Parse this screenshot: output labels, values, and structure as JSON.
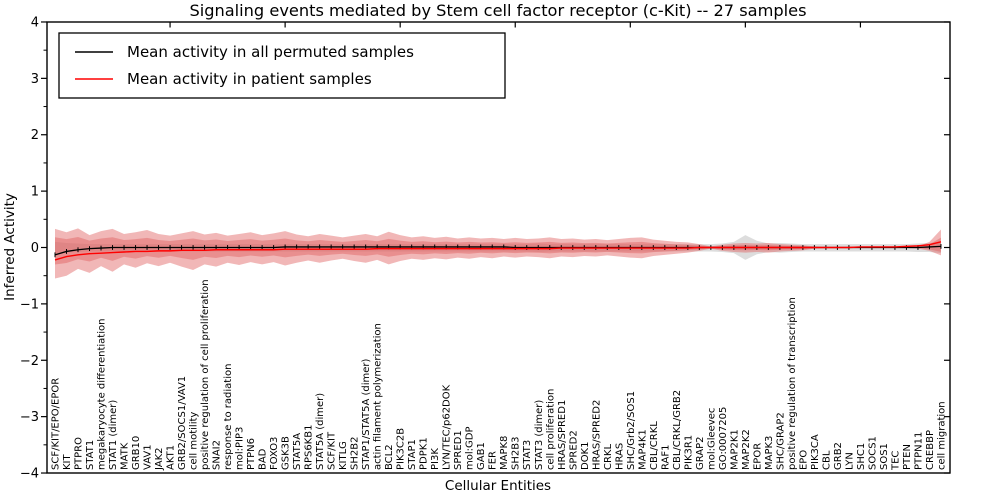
{
  "title": "Signaling events mediated by Stem cell factor receptor (c-Kit) -- 27 samples",
  "x_axis": {
    "label": "Cellular Entities"
  },
  "y_axis": {
    "label": "Inferred Activity",
    "ticks": [
      4,
      3,
      2,
      1,
      0,
      -1,
      -2,
      -3,
      -4
    ]
  },
  "legend": {
    "entries": [
      {
        "label": "Mean activity in all permuted samples",
        "color": "#000000"
      },
      {
        "label": "Mean activity in patient samples",
        "color": "#ff0000"
      }
    ]
  },
  "colors": {
    "permuted_line": "#000000",
    "patient_line": "#ff0000",
    "patient_band": "#e06060",
    "permuted_band": "#bbbbbb",
    "axis": "#000000"
  },
  "chart_data": {
    "type": "line",
    "title": "Signaling events mediated by Stem cell factor receptor (c-Kit) -- 27 samples",
    "xlabel": "Cellular Entities",
    "ylabel": "Inferred Activity",
    "ylim": [
      -4,
      4
    ],
    "grid": false,
    "legend_position": "upper left",
    "x_tick_rotation": 90,
    "categories": [
      "SCF/KIT/EPO/EPOR",
      "KIT",
      "PTPRO",
      "STAT1",
      "megakaryocyte differentiation",
      "STAT1 (dimer)",
      "MATK",
      "GRB10",
      "VAV1",
      "JAK2",
      "AKT1",
      "GRB2/SOCS1/VAV1",
      "cell motility",
      "positive regulation of cell proliferation",
      "SNAI2",
      "response to radiation",
      "mol:PIP3",
      "PTPN6",
      "BAD",
      "FOXO3",
      "GSK3B",
      "STAT5A",
      "RPS6KB1",
      "STAT5A (dimer)",
      "SCF/KIT",
      "KITLG",
      "SH2B2",
      "STAP1/STAT5A (dimer)",
      "actin filament polymerization",
      "BCL2",
      "PIK3C2B",
      "STAP1",
      "PDPK1",
      "PI3K",
      "LYN/TEC/p62DOK",
      "SPRED1",
      "mol:GDP",
      "GAB1",
      "FER",
      "MAPK8",
      "SH2B3",
      "STAT3",
      "STAT3 (dimer)",
      "cell proliferation",
      "HRAS/SPRED1",
      "SPRED2",
      "DOK1",
      "HRAS/SPRED2",
      "CRKL",
      "HRAS",
      "SHC/Grb2/SOS1",
      "MAP4K1",
      "CBL/CRKL",
      "RAF1",
      "CBL/CRKL/GRB2",
      "PIK3R1",
      "GRAP2",
      "mol:Gleevec",
      "GO:0007205",
      "MAP2K1",
      "MAP2K2",
      "EPOR",
      "MAPK3",
      "SHC/GRAP2",
      "positive regulation of transcription",
      "EPO",
      "PIK3CA",
      "CBL",
      "GRB2",
      "LYN",
      "SHC1",
      "SOCS1",
      "SOS1",
      "TEC",
      "PTEN",
      "PTPN11",
      "CREBBP",
      "cell migration"
    ],
    "band_inner_scale": 0.55,
    "series": [
      {
        "name": "Mean activity in all permuted samples",
        "color": "#000000",
        "values": [
          -0.13,
          -0.07,
          -0.04,
          -0.02,
          -0.01,
          0,
          0,
          0,
          0,
          0,
          0,
          0,
          0,
          0,
          0,
          0,
          0,
          0,
          0,
          0,
          0.01,
          0.01,
          0.01,
          0.01,
          0.01,
          0.01,
          0.01,
          0.01,
          0.01,
          0.01,
          0.01,
          0.01,
          0.01,
          0.01,
          0.01,
          0.01,
          0.01,
          0.01,
          0.01,
          0.01,
          0,
          0,
          0,
          0,
          0,
          0,
          0,
          0,
          0,
          0,
          0,
          0,
          0,
          0,
          0,
          0,
          0,
          0,
          0,
          0,
          0,
          0,
          0,
          0,
          0,
          0,
          0,
          0,
          0,
          0,
          0,
          0,
          0,
          0,
          0,
          0,
          0.01,
          0.02
        ]
      },
      {
        "name": "Mean activity in patient samples",
        "color": "#ff0000",
        "values": [
          -0.22,
          -0.16,
          -0.13,
          -0.11,
          -0.1,
          -0.09,
          -0.08,
          -0.07,
          -0.07,
          -0.06,
          -0.06,
          -0.05,
          -0.05,
          -0.05,
          -0.04,
          -0.04,
          -0.04,
          -0.04,
          -0.04,
          -0.04,
          -0.03,
          -0.03,
          -0.03,
          -0.03,
          -0.03,
          -0.03,
          -0.03,
          -0.03,
          -0.02,
          -0.02,
          -0.02,
          -0.02,
          -0.02,
          -0.02,
          -0.02,
          -0.02,
          -0.02,
          -0.02,
          -0.02,
          -0.02,
          -0.02,
          -0.02,
          -0.02,
          -0.02,
          -0.01,
          -0.01,
          -0.01,
          -0.01,
          -0.01,
          -0.01,
          -0.01,
          -0.01,
          -0.01,
          -0.01,
          -0.01,
          -0.01,
          0,
          0,
          0,
          0,
          0,
          0,
          0,
          0,
          0,
          0,
          0,
          0,
          0,
          0,
          0.01,
          0.01,
          0.01,
          0.01,
          0.02,
          0.03,
          0.05,
          0.1
        ]
      },
      {
        "name": "patient band upper",
        "color": "#e06060",
        "values": [
          0.33,
          0.27,
          0.34,
          0.22,
          0.29,
          0.33,
          0.24,
          0.27,
          0.31,
          0.24,
          0.21,
          0.25,
          0.29,
          0.23,
          0.26,
          0.21,
          0.24,
          0.27,
          0.22,
          0.25,
          0.29,
          0.23,
          0.2,
          0.24,
          0.21,
          0.18,
          0.21,
          0.24,
          0.2,
          0.28,
          0.22,
          0.18,
          0.2,
          0.17,
          0.19,
          0.16,
          0.18,
          0.16,
          0.17,
          0.15,
          0.17,
          0.15,
          0.16,
          0.18,
          0.15,
          0.16,
          0.14,
          0.15,
          0.13,
          0.15,
          0.17,
          0.18,
          0.14,
          0.12,
          0.1,
          0.09,
          0.06,
          0.02,
          0.05,
          0.07,
          0.08,
          0.07,
          0.08,
          0.06,
          0.05,
          0.04,
          0.02,
          0.01,
          0.01,
          0.01,
          0.01,
          0.01,
          0.01,
          0.01,
          0.01,
          0.02,
          0.1,
          0.32
        ]
      },
      {
        "name": "patient band lower",
        "color": "#e06060",
        "values": [
          -0.55,
          -0.5,
          -0.38,
          -0.45,
          -0.33,
          -0.43,
          -0.3,
          -0.36,
          -0.28,
          -0.33,
          -0.27,
          -0.34,
          -0.4,
          -0.3,
          -0.34,
          -0.27,
          -0.31,
          -0.26,
          -0.3,
          -0.26,
          -0.32,
          -0.27,
          -0.23,
          -0.27,
          -0.23,
          -0.2,
          -0.24,
          -0.27,
          -0.22,
          -0.3,
          -0.24,
          -0.2,
          -0.22,
          -0.19,
          -0.21,
          -0.18,
          -0.2,
          -0.17,
          -0.19,
          -0.16,
          -0.18,
          -0.16,
          -0.17,
          -0.19,
          -0.16,
          -0.17,
          -0.15,
          -0.16,
          -0.14,
          -0.16,
          -0.18,
          -0.19,
          -0.15,
          -0.13,
          -0.11,
          -0.09,
          -0.06,
          -0.02,
          -0.06,
          -0.08,
          -0.09,
          -0.08,
          -0.09,
          -0.07,
          -0.06,
          -0.05,
          -0.02,
          -0.01,
          -0.01,
          -0.01,
          -0.01,
          -0.01,
          -0.01,
          -0.01,
          -0.01,
          -0.02,
          -0.06,
          -0.14
        ]
      },
      {
        "name": "permuted band upper",
        "color": "#bbbbbb",
        "values": [
          0.1,
          0.08,
          0.07,
          0.06,
          0.06,
          0.06,
          0.06,
          0.06,
          0.06,
          0.06,
          0.06,
          0.06,
          0.06,
          0.06,
          0.06,
          0.06,
          0.06,
          0.06,
          0.06,
          0.06,
          0.06,
          0.06,
          0.06,
          0.06,
          0.06,
          0.06,
          0.06,
          0.06,
          0.06,
          0.06,
          0.06,
          0.06,
          0.06,
          0.06,
          0.06,
          0.06,
          0.06,
          0.06,
          0.06,
          0.06,
          0.06,
          0.06,
          0.07,
          0.06,
          0.06,
          0.06,
          0.06,
          0.06,
          0.06,
          0.06,
          0.06,
          0.06,
          0.06,
          0.06,
          0.06,
          0.06,
          0.06,
          0.06,
          0.07,
          0.1,
          0.22,
          0.12,
          0.07,
          0.08,
          0.07,
          0.06,
          0.06,
          0.06,
          0.06,
          0.06,
          0.06,
          0.06,
          0.06,
          0.06,
          0.06,
          0.07,
          0.08,
          0.1
        ]
      },
      {
        "name": "permuted band lower",
        "color": "#bbbbbb",
        "values": [
          -0.12,
          -0.09,
          -0.08,
          -0.07,
          -0.07,
          -0.07,
          -0.07,
          -0.07,
          -0.07,
          -0.07,
          -0.07,
          -0.07,
          -0.07,
          -0.07,
          -0.07,
          -0.07,
          -0.07,
          -0.07,
          -0.07,
          -0.07,
          -0.07,
          -0.07,
          -0.07,
          -0.07,
          -0.07,
          -0.07,
          -0.07,
          -0.07,
          -0.07,
          -0.07,
          -0.07,
          -0.07,
          -0.07,
          -0.07,
          -0.07,
          -0.07,
          -0.07,
          -0.07,
          -0.07,
          -0.07,
          -0.07,
          -0.07,
          -0.08,
          -0.07,
          -0.07,
          -0.07,
          -0.07,
          -0.07,
          -0.07,
          -0.07,
          -0.07,
          -0.07,
          -0.07,
          -0.07,
          -0.07,
          -0.07,
          -0.07,
          -0.07,
          -0.08,
          -0.1,
          -0.22,
          -0.12,
          -0.08,
          -0.09,
          -0.08,
          -0.07,
          -0.07,
          -0.07,
          -0.07,
          -0.07,
          -0.07,
          -0.07,
          -0.07,
          -0.07,
          -0.07,
          -0.08,
          -0.08,
          -0.1
        ]
      }
    ]
  }
}
